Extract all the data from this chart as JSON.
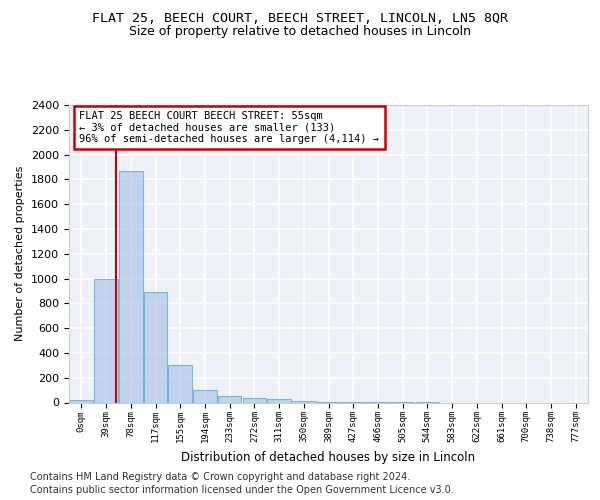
{
  "title1": "FLAT 25, BEECH COURT, BEECH STREET, LINCOLN, LN5 8QR",
  "title2": "Size of property relative to detached houses in Lincoln",
  "xlabel": "Distribution of detached houses by size in Lincoln",
  "ylabel": "Number of detached properties",
  "categories": [
    "0sqm",
    "39sqm",
    "78sqm",
    "117sqm",
    "155sqm",
    "194sqm",
    "233sqm",
    "272sqm",
    "311sqm",
    "350sqm",
    "389sqm",
    "427sqm",
    "466sqm",
    "505sqm",
    "544sqm",
    "583sqm",
    "622sqm",
    "661sqm",
    "700sqm",
    "738sqm",
    "777sqm"
  ],
  "values": [
    20,
    1000,
    1870,
    890,
    305,
    100,
    50,
    35,
    25,
    15,
    5,
    3,
    2,
    1,
    1,
    0,
    0,
    0,
    0,
    0,
    0
  ],
  "bar_color": "#aec6e8",
  "bar_edge_color": "#5a9fd4",
  "bar_alpha": 0.7,
  "vline_x": 1.41,
  "vline_color": "#cc0000",
  "ylim": [
    0,
    2400
  ],
  "yticks": [
    0,
    200,
    400,
    600,
    800,
    1000,
    1200,
    1400,
    1600,
    1800,
    2000,
    2200,
    2400
  ],
  "annotation_line1": "FLAT 25 BEECH COURT BEECH STREET: 55sqm",
  "annotation_line2": "← 3% of detached houses are smaller (133)",
  "annotation_line3": "96% of semi-detached houses are larger (4,114) →",
  "annotation_box_color": "#cc0000",
  "footer1": "Contains HM Land Registry data © Crown copyright and database right 2024.",
  "footer2": "Contains public sector information licensed under the Open Government Licence v3.0.",
  "bg_color": "#eef2f8",
  "grid_color": "#ffffff",
  "title1_fontsize": 9.5,
  "title2_fontsize": 9
}
